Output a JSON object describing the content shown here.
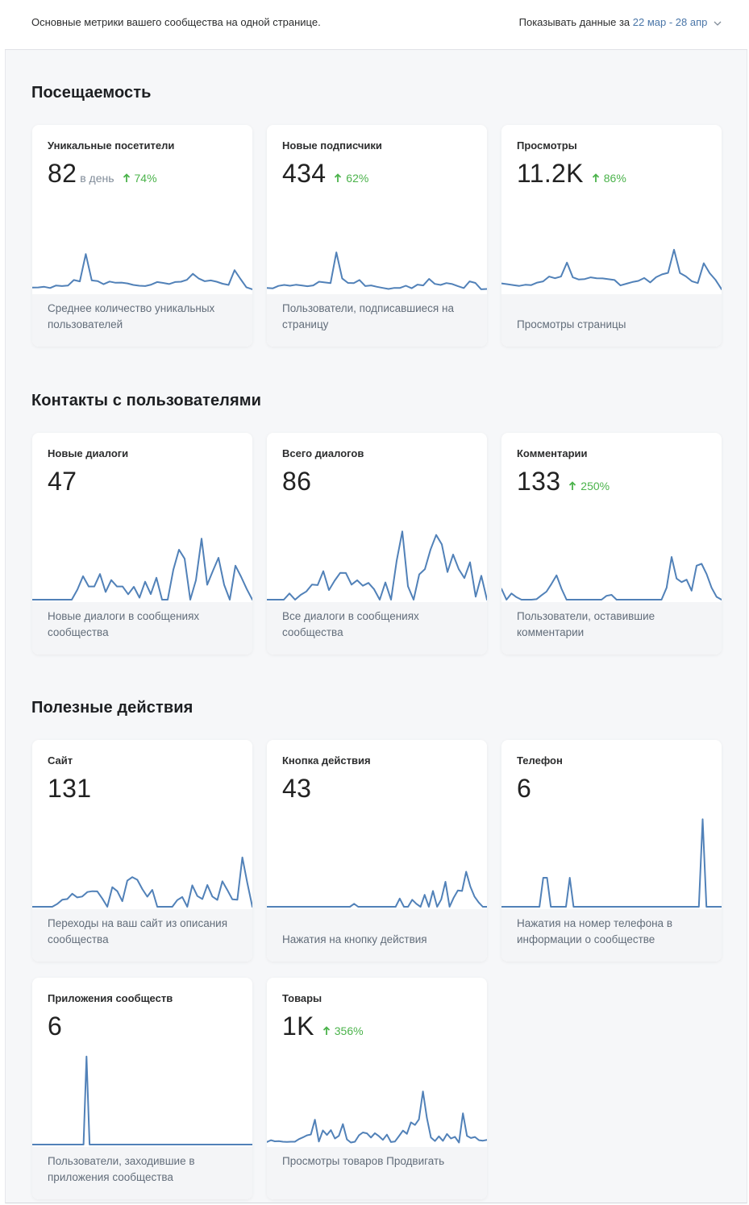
{
  "header": {
    "intro": "Основные метрики вашего сообщества на одной странице.",
    "period_label": "Показывать данные за",
    "period_range": "22 мар - 28 апр",
    "period_icon": "chevron-down-icon"
  },
  "colors": {
    "line": "#5181b8",
    "positive": "#4bb34b",
    "link": "#4a76a8"
  },
  "sections": [
    {
      "title": "Посещаемость",
      "cards": [
        {
          "title": "Уникальные посетители",
          "value": "82",
          "per": "в день",
          "delta": "74%",
          "description": "Среднее количество уникальных пользователей",
          "series": [
            5,
            5.2,
            6,
            4.5,
            7.5,
            6.8,
            7.4,
            14,
            12.4,
            45,
            13.6,
            12.8,
            9,
            12.2,
            10.8,
            11,
            10,
            8.2,
            7.2,
            6.8,
            8.6,
            11.6,
            10.6,
            9.2,
            11.6,
            12,
            14.2,
            21.4,
            15.8,
            12.6,
            13.6,
            12,
            9.6,
            8.2,
            25.8,
            15.4,
            5.4,
            3
          ]
        },
        {
          "title": "Новые подписчики",
          "value": "434",
          "delta": "62%",
          "description": "Пользователи, подписавшиеся на страницу",
          "series": [
            4.5,
            4,
            7,
            8.2,
            7.2,
            8.4,
            7.6,
            6.6,
            7.6,
            12,
            11.2,
            10.4,
            47,
            16,
            10.6,
            10.4,
            14,
            6.8,
            7.6,
            6,
            4.6,
            3.4,
            4.6,
            4.6,
            7.2,
            4.2,
            8.6,
            7.6,
            15.4,
            9.4,
            8.2,
            10.4,
            9.2,
            6.6,
            4.4,
            12.4,
            10.6,
            3,
            3.4
          ]
        },
        {
          "title": "Просмотры",
          "value": "11.2K",
          "delta": "86%",
          "description": "Просмотры страницы",
          "series": [
            10,
            9,
            8,
            7,
            8.4,
            8,
            11,
            12.4,
            18.2,
            16.2,
            18.2,
            34.8,
            17.2,
            14.6,
            15.2,
            17.2,
            16.2,
            16,
            15,
            14,
            7.6,
            9.6,
            11.6,
            13,
            16.4,
            11.2,
            17.4,
            20.8,
            22.6,
            50.2,
            22.4,
            18.4,
            12.6,
            10.4,
            34,
            22.2,
            14,
            3
          ]
        }
      ]
    },
    {
      "title": "Контакты с пользователями",
      "cards": [
        {
          "title": "Новые диалоги",
          "value": "47",
          "description": "Новые диалоги в сообщениях сообщества",
          "series": [
            0,
            0,
            0,
            0,
            0,
            0,
            0,
            0,
            12,
            28,
            15.8,
            15.8,
            30.6,
            9.2,
            23.4,
            15.8,
            15.8,
            6.4,
            15.4,
            2.4,
            21.4,
            6.6,
            26.2,
            0,
            0,
            35.8,
            59.6,
            48.8,
            0,
            23.2,
            72.8,
            17.8,
            34.2,
            50,
            17.8,
            0,
            40.6,
            27.4,
            12.8,
            0
          ]
        },
        {
          "title": "Всего диалогов",
          "value": "86",
          "description": "Все диалоги в сообщениях сообщества",
          "series": [
            0,
            0,
            0,
            0,
            7.4,
            0,
            5.8,
            9.8,
            18,
            17.4,
            34,
            11.4,
            22.6,
            32,
            31.8,
            18,
            23.2,
            16.6,
            20,
            12.4,
            0,
            20.6,
            0,
            46.4,
            81.4,
            16,
            0,
            30.2,
            36.4,
            59.8,
            77.2,
            66,
            33,
            53.8,
            36.4,
            25.8,
            44.6,
            3.6,
            28.6,
            0
          ]
        },
        {
          "title": "Комментарии",
          "value": "133",
          "delta": "250%",
          "description": "Пользователи, оставившие комментарии",
          "series": [
            13,
            0,
            7.4,
            3,
            0,
            0,
            0,
            0.6,
            5.2,
            9.6,
            18.8,
            29,
            13,
            0,
            0,
            0,
            0,
            0,
            0,
            0,
            0,
            4.6,
            5.8,
            0,
            0,
            0,
            0,
            0,
            0,
            0,
            0,
            0,
            0,
            14.2,
            51,
            25.2,
            21,
            23.8,
            10.8,
            40.6,
            42.8,
            30.6,
            14.2,
            3.4,
            0
          ]
        }
      ]
    },
    {
      "title": "Полезные действия",
      "cards": [
        {
          "title": "Сайт",
          "value": "131",
          "description": "Переходы на ваш сайт из описания сообщества",
          "series": [
            0,
            0,
            0,
            0,
            0,
            3.4,
            8.4,
            9.2,
            15.6,
            11.2,
            12.2,
            17.6,
            18.6,
            18.4,
            9.8,
            0,
            23.4,
            18.6,
            6.6,
            31.2,
            35.4,
            32.2,
            21.2,
            12,
            20.2,
            0,
            0,
            0,
            0,
            8,
            11.6,
            0,
            25.6,
            12.8,
            9.2,
            26,
            12.2,
            8.2,
            30.4,
            20,
            8.8,
            8.4,
            58.8,
            28.2,
            0
          ]
        },
        {
          "title": "Кнопка действия",
          "value": "43",
          "description": "Нажатия на кнопку действия",
          "series": [
            0,
            0,
            0,
            0,
            0,
            0,
            0,
            0,
            0,
            0,
            0,
            0,
            0,
            0,
            0,
            0,
            0,
            0,
            0,
            0,
            0,
            3.6,
            0,
            0,
            0,
            0,
            0,
            0,
            0,
            0,
            0,
            0,
            9.8,
            0,
            0,
            8.4,
            3.6,
            0,
            14.2,
            0,
            18.8,
            0,
            8.8,
            29.8,
            0,
            11,
            19.4,
            18.8,
            41.8,
            24,
            12.2,
            5.2,
            0,
            0
          ]
        },
        {
          "title": "Телефон",
          "value": "6",
          "description": "Нажатия на номер телефона в информации о сообществе",
          "series": [
            0,
            0,
            0,
            0,
            0,
            0,
            0,
            0,
            0,
            0,
            0,
            34.6,
            34.6,
            0,
            0,
            0,
            0,
            0,
            34.6,
            0,
            0,
            0,
            0,
            0,
            0,
            0,
            0,
            0,
            0,
            0,
            0,
            0,
            0,
            0,
            0,
            0,
            0,
            0,
            0,
            0,
            0,
            0,
            0,
            0,
            0,
            0,
            0,
            0,
            0,
            0,
            0,
            0,
            0,
            104.4,
            0,
            0,
            0,
            0,
            0
          ]
        },
        {
          "title": "Приложения сообществ",
          "value": "6",
          "description": "Пользователи, заходившие в приложения сообщества",
          "series": [
            0,
            0,
            0,
            0,
            0,
            0,
            0,
            0,
            0,
            0,
            0,
            0,
            0,
            0,
            0,
            0,
            0,
            0,
            105,
            0,
            0,
            0,
            0,
            0,
            0,
            0,
            0,
            0,
            0,
            0,
            0,
            0,
            0,
            0,
            0,
            0,
            0,
            0,
            0,
            0,
            0,
            0,
            0,
            0,
            0,
            0,
            0,
            0,
            0,
            0,
            0,
            0,
            0,
            0,
            0,
            0,
            0,
            0,
            0,
            0,
            0,
            0,
            0,
            0,
            0,
            0,
            0,
            0,
            0,
            0,
            0,
            0,
            0,
            0
          ]
        },
        {
          "title": "Товары",
          "value": "1K",
          "delta": "356%",
          "description": "Просмотры товаров Продвигать",
          "series": [
            3,
            5.2,
            3.8,
            4,
            3.4,
            3.2,
            3.4,
            3.4,
            6.4,
            8.6,
            11,
            12,
            29.6,
            3.6,
            16.8,
            11.4,
            17.2,
            7.2,
            10.4,
            24.4,
            6.2,
            2.4,
            3.4,
            11,
            14.4,
            13.4,
            8.4,
            13.6,
            10,
            5.6,
            11.8,
            3,
            3.6,
            10,
            16.6,
            12.8,
            26.4,
            23.4,
            30,
            63.4,
            31.6,
            8.4,
            4.2,
            9.8,
            4.4,
            12.6,
            7.2,
            9.2,
            2.4,
            37.2,
            10.4,
            7.8,
            9,
            5.2,
            4.6,
            5.6
          ]
        }
      ]
    }
  ]
}
